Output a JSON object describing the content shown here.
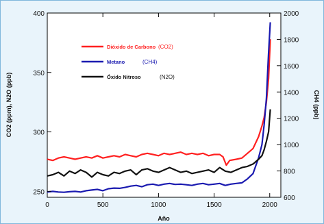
{
  "chart_data": {
    "type": "line",
    "xlabel": "Año",
    "ylabel_left": "CO2 (ppm), N2O (ppb)",
    "ylabel_right": "CH4 (ppb)",
    "xlim": [
      0,
      2100
    ],
    "ylim_left": [
      245,
      400
    ],
    "ylim_right": [
      600,
      2000
    ],
    "xticks": [
      0,
      500,
      1000,
      1500,
      2000
    ],
    "yticks_left": [
      250,
      300,
      350,
      400
    ],
    "yticks_right": [
      600,
      800,
      1000,
      1200,
      1400,
      1600,
      1800,
      2000
    ],
    "grid": false,
    "legend_position": "top-left",
    "series": [
      {
        "name": "Dióxido de Carbono (CO2)",
        "legend_name": "Dióxido de Carbono",
        "legend_formula": "(CO2)",
        "color": "#ff2020",
        "axis": "left",
        "x": [
          0,
          50,
          100,
          150,
          200,
          250,
          300,
          350,
          400,
          450,
          500,
          550,
          600,
          650,
          700,
          750,
          800,
          850,
          900,
          950,
          1000,
          1050,
          1100,
          1150,
          1200,
          1250,
          1300,
          1350,
          1400,
          1450,
          1500,
          1550,
          1580,
          1610,
          1640,
          1700,
          1750,
          1800,
          1850,
          1900,
          1930,
          1950,
          1970,
          1990,
          2005
        ],
        "y": [
          277,
          276,
          278,
          279,
          278,
          277,
          278,
          279,
          278,
          280,
          278,
          279,
          280,
          279,
          281,
          280,
          279,
          281,
          282,
          281,
          280,
          282,
          281,
          282,
          283,
          281,
          282,
          281,
          282,
          280,
          281,
          281,
          279,
          272,
          276,
          277,
          278,
          282,
          286,
          296,
          305,
          312,
          325,
          345,
          378
        ]
      },
      {
        "name": "Metano (CH4)",
        "legend_name": "Metano",
        "legend_formula": "(CH4)",
        "color": "#1a1ab0",
        "axis": "right",
        "x": [
          0,
          50,
          100,
          150,
          200,
          250,
          300,
          350,
          400,
          450,
          500,
          550,
          600,
          650,
          700,
          750,
          800,
          850,
          900,
          950,
          1000,
          1050,
          1100,
          1150,
          1200,
          1250,
          1300,
          1350,
          1400,
          1450,
          1500,
          1550,
          1600,
          1650,
          1700,
          1750,
          1800,
          1850,
          1900,
          1930,
          1950,
          1970,
          1990,
          2005
        ],
        "y": [
          640,
          645,
          640,
          638,
          642,
          645,
          640,
          650,
          655,
          660,
          650,
          665,
          670,
          668,
          675,
          685,
          690,
          680,
          695,
          700,
          690,
          700,
          705,
          698,
          700,
          695,
          690,
          700,
          705,
          695,
          700,
          705,
          690,
          700,
          705,
          710,
          740,
          780,
          900,
          1000,
          1150,
          1350,
          1700,
          1930
        ]
      },
      {
        "name": "Óxido Nitroso (N2O)",
        "legend_name": "Óxido Nitroso",
        "legend_formula": "(N2O)",
        "color": "#111111",
        "axis": "left",
        "x": [
          0,
          50,
          100,
          150,
          200,
          250,
          300,
          350,
          400,
          450,
          500,
          550,
          600,
          650,
          700,
          750,
          800,
          850,
          900,
          950,
          1000,
          1050,
          1100,
          1150,
          1200,
          1250,
          1300,
          1350,
          1400,
          1450,
          1500,
          1550,
          1600,
          1650,
          1700,
          1750,
          1800,
          1850,
          1900,
          1930,
          1950,
          1970,
          1990,
          2005
        ],
        "y": [
          263,
          264,
          266,
          263,
          267,
          265,
          268,
          266,
          262,
          266,
          264,
          263,
          266,
          265,
          267,
          268,
          264,
          268,
          269,
          267,
          266,
          268,
          270,
          268,
          266,
          267,
          265,
          266,
          267,
          268,
          266,
          270,
          267,
          266,
          268,
          270,
          271,
          273,
          277,
          280,
          285,
          292,
          300,
          319
        ]
      }
    ]
  }
}
